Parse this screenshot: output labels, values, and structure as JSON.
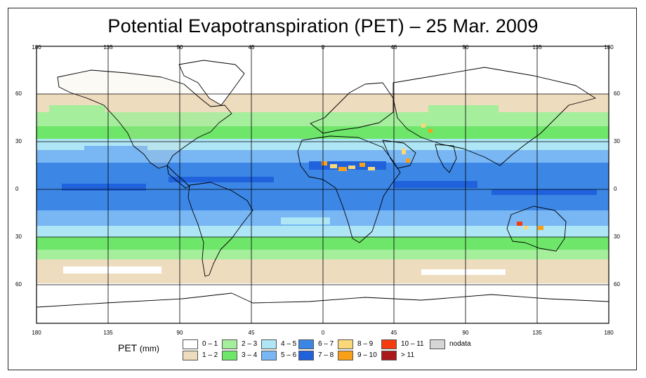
{
  "title": "Potential Evapotranspiration (PET) – 25 Mar. 2009",
  "axes": {
    "x_ticks_top": [
      "180",
      "135",
      "90",
      "45",
      "0",
      "45",
      "90",
      "135",
      "180"
    ],
    "x_ticks_bottom": [
      "180",
      "135",
      "90",
      "45",
      "0",
      "45",
      "90",
      "135",
      "180"
    ],
    "y_ticks_left": [
      "60",
      "30",
      "0",
      "30",
      "60"
    ],
    "y_ticks_right": [
      "60",
      "30",
      "0",
      "30",
      "60"
    ]
  },
  "legend": {
    "title": "PET",
    "units": "(mm)",
    "classes": [
      {
        "label": "0 – 1",
        "color": "#ffffff"
      },
      {
        "label": "1 – 2",
        "color": "#eedcbe"
      },
      {
        "label": "2 – 3",
        "color": "#a4ee9c"
      },
      {
        "label": "3 – 4",
        "color": "#6ee66a"
      },
      {
        "label": "4 – 5",
        "color": "#aee6f6"
      },
      {
        "label": "5 – 6",
        "color": "#78b6f4"
      },
      {
        "label": "6 – 7",
        "color": "#3c86e6"
      },
      {
        "label": "7 – 8",
        "color": "#2062dc"
      },
      {
        "label": "8 – 9",
        "color": "#fad87a"
      },
      {
        "label": "9 – 10",
        "color": "#f8a018"
      },
      {
        "label": "10 – 11",
        "color": "#f43c10"
      },
      {
        "label": "> 11",
        "color": "#aa1a1a"
      },
      {
        "label": "nodata",
        "color": "#d6d6d6"
      }
    ]
  }
}
